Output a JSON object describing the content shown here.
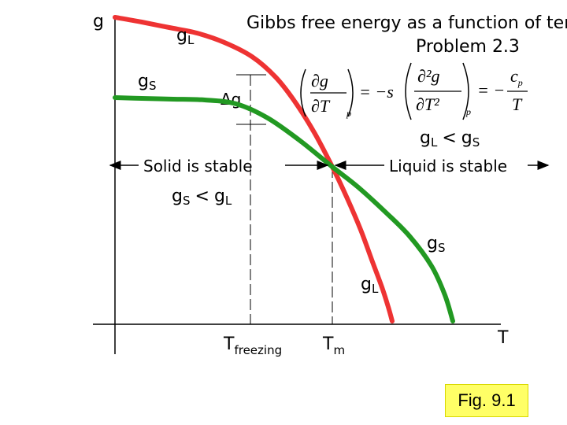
{
  "chart_data": {
    "type": "line",
    "title": "Gibbs free energy as a function of temperature,",
    "problem": "Problem 2.3",
    "ylabel": "g",
    "xlabel": "T",
    "axis_labels": {
      "t_freezing_main": "T",
      "t_freezing_sub": "freezing",
      "t_melt_main": "T",
      "t_melt_sub": "m"
    },
    "series": [
      {
        "name": "gL",
        "color": "#ee3333",
        "values": [
          [
            146,
            22
          ],
          [
            180,
            28
          ],
          [
            215,
            35
          ],
          [
            250,
            42
          ],
          [
            285,
            54
          ],
          [
            320,
            72
          ],
          [
            350,
            98
          ],
          [
            375,
            130
          ],
          [
            400,
            170
          ],
          [
            422,
            212
          ],
          [
            440,
            250
          ],
          [
            458,
            292
          ],
          [
            472,
            330
          ],
          [
            485,
            365
          ],
          [
            493,
            390
          ],
          [
            498,
            408
          ]
        ]
      },
      {
        "name": "gS",
        "color": "#229922",
        "values": [
          [
            146,
            124
          ],
          [
            180,
            125
          ],
          [
            220,
            126
          ],
          [
            260,
            127
          ],
          [
            300,
            132
          ],
          [
            340,
            150
          ],
          [
            380,
            178
          ],
          [
            422,
            212
          ],
          [
            455,
            238
          ],
          [
            490,
            270
          ],
          [
            520,
            300
          ],
          [
            548,
            338
          ],
          [
            565,
            375
          ],
          [
            575,
            408
          ]
        ]
      }
    ],
    "curve_labels": {
      "gL_top_main": "g",
      "gL_top_sub": "L",
      "gS_left_main": "g",
      "gS_left_sub": "S",
      "gS_right_main": "g",
      "gS_right_sub": "S",
      "gL_bottom_main": "g",
      "gL_bottom_sub": "L"
    },
    "annotations": {
      "delta_g": "Δg",
      "solid_stable": "Solid is stable",
      "liquid_stable": "Liquid is stable",
      "gL_lt_gS": {
        "a": "g",
        "a_sub": "L",
        "op": "<",
        "b": "g",
        "b_sub": "S"
      },
      "gS_lt_gL": {
        "a": "g",
        "a_sub": "S",
        "op": "<",
        "b": "g",
        "b_sub": "L"
      }
    },
    "equation": {
      "first_lhs_num": "∂g",
      "first_lhs_den": "∂T",
      "first_sub": "p",
      "first_rhs": "= −s",
      "second_lhs_num": "∂²g",
      "second_lhs_den": "∂T²",
      "second_sub": "p",
      "second_rhs_sign": "= −",
      "second_rhs_num_main": "c",
      "second_rhs_num_sub": "p",
      "second_rhs_den": "T"
    },
    "figure_label": "Fig. 9.1",
    "colors": {
      "liquid": "#ee3333",
      "solid": "#229922",
      "caption_bg": "#ffff66"
    }
  }
}
